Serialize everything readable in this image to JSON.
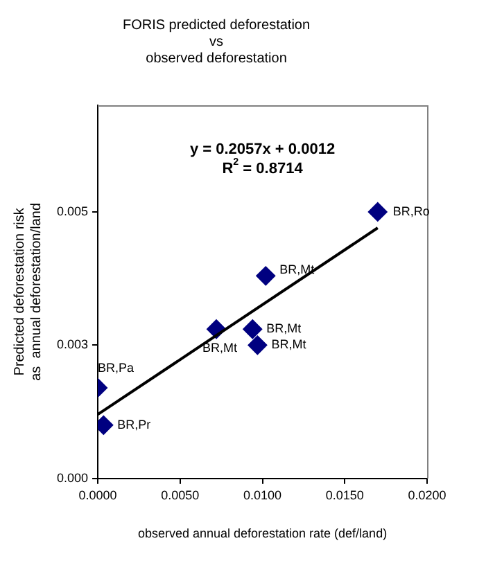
{
  "chart_data": {
    "type": "scatter",
    "title": [
      "FORIS predicted deforestation",
      "vs",
      "observed deforestation"
    ],
    "xlabel": "observed annual deforestation rate (def/land)",
    "ylabel": [
      "Predicted deforestation risk",
      "as  annual deforestation/land"
    ],
    "xlim": [
      0,
      0.02
    ],
    "xticks": [
      {
        "value": 0,
        "label": "0.0000"
      },
      {
        "value": 0.005,
        "label": "0.0050"
      },
      {
        "value": 0.01,
        "label": "0.0100"
      },
      {
        "value": 0.015,
        "label": "0.0150"
      },
      {
        "value": 0.02,
        "label": "0.0200"
      }
    ],
    "ylim": [
      0,
      0.007
    ],
    "yticks": [
      {
        "value": 0,
        "label": "0.000"
      },
      {
        "value": 0.0025,
        "label": "0.003"
      },
      {
        "value": 0.005,
        "label": "0.005"
      }
    ],
    "grid": false,
    "legend": false,
    "series": [
      {
        "marker": "diamond",
        "color": "#000080",
        "x": [
          0,
          0.00035,
          0.0072,
          0.0094,
          0.0097,
          0.0102,
          0.017
        ],
        "values": [
          0.0017,
          0.001,
          0.0028,
          0.0028,
          0.0025,
          0.0038,
          0.005
        ]
      },
      {
        "type": "line",
        "marker": "none",
        "color": "#000000",
        "x": [
          0,
          0.017
        ],
        "values": [
          0.0012,
          0.0047
        ]
      }
    ],
    "annotations": [
      "y = 0.2057x + 0.0012",
      "R$^{2}$ = 0.8714",
      {
        "text": "BR,Pa",
        "x": 0,
        "y": 0.0017
      },
      {
        "text": "BR,Pr",
        "x": 0.00035,
        "y": 0.001
      },
      {
        "text": "BR,Mt",
        "x": 0.0072,
        "y": 0.0028
      },
      {
        "text": "BR,Mt",
        "x": 0.0094,
        "y": 0.0028
      },
      {
        "text": "BR,Mt",
        "x": 0.0097,
        "y": 0.0025
      },
      {
        "text": "BR,Mt",
        "x": 0.0102,
        "y": 0.0038
      },
      {
        "text": "BR,Ro",
        "x": 0.017,
        "y": 0.005
      }
    ]
  }
}
